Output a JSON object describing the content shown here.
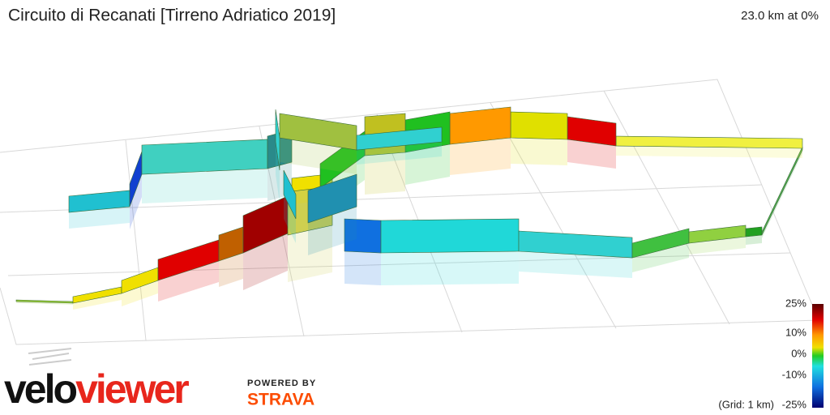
{
  "header": {
    "title": "Circuito di Recanati [Tirreno Adriatico 2019]",
    "summary": "23.0 km at 0%"
  },
  "legend": {
    "labels": [
      "25%",
      "10%",
      "0%",
      "-10%",
      "-25%"
    ],
    "grid_note": "(Grid: 1 km)"
  },
  "branding": {
    "logo_start": "velo",
    "logo_end": "viewer",
    "powered_by": "POWERED BY",
    "partner": "STRAVA"
  }
}
